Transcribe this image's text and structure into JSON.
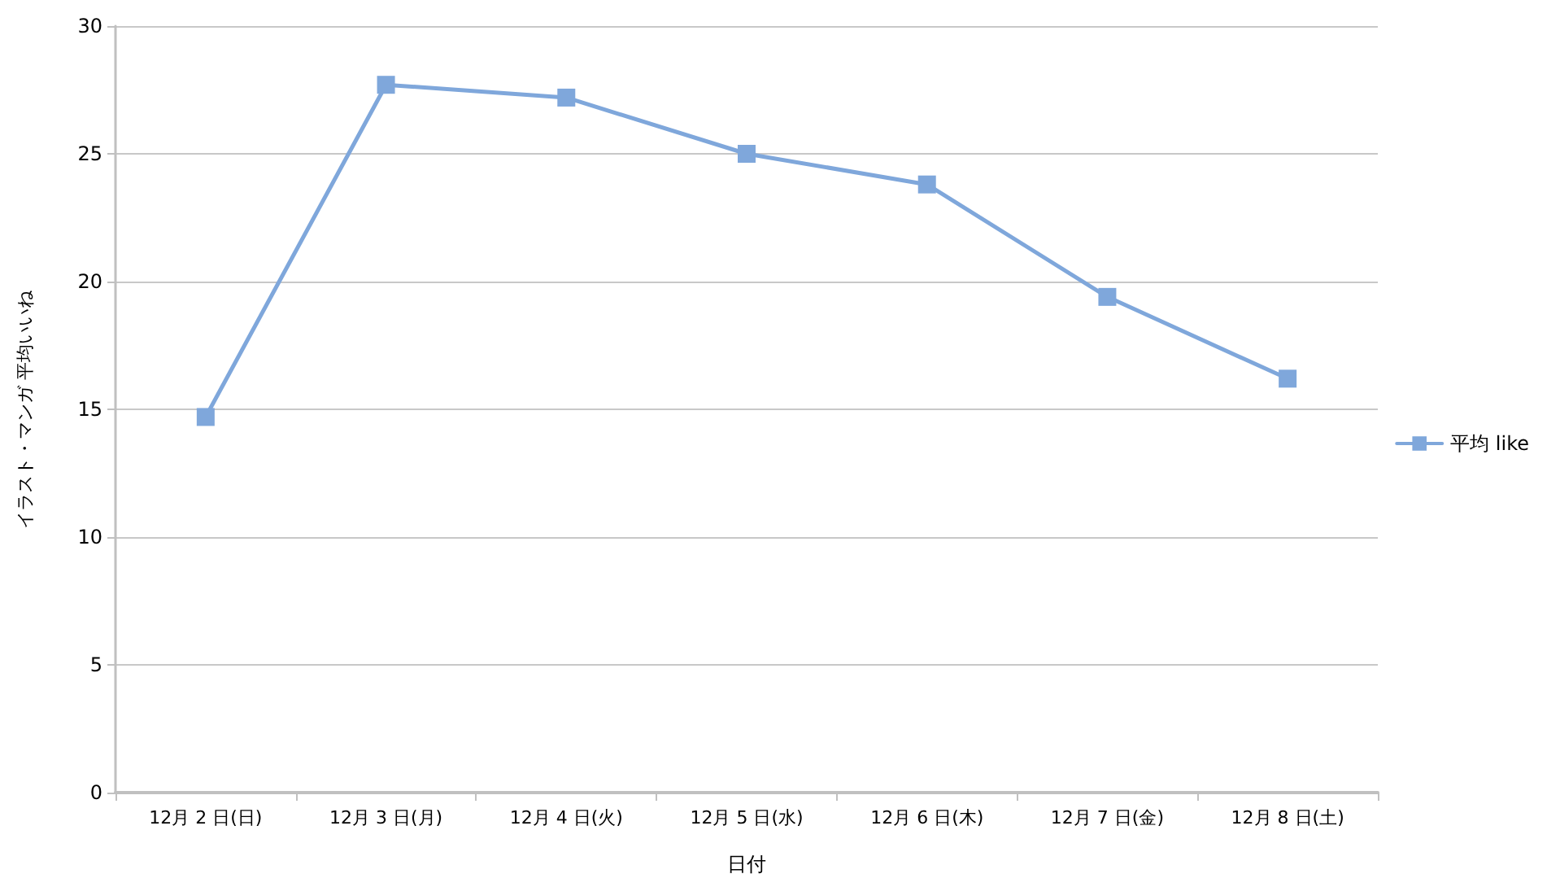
{
  "chart_data": {
    "type": "line",
    "categories": [
      "12月 2 日(日)",
      "12月 3 日(月)",
      "12月 4 日(火)",
      "12月 5 日(水)",
      "12月 6 日(木)",
      "12月 7 日(金)",
      "12月 8 日(土)"
    ],
    "series": [
      {
        "name": "平均 like",
        "color": "#7fa7db",
        "values": [
          14.7,
          27.7,
          27.2,
          25.0,
          23.8,
          19.4,
          16.2
        ]
      }
    ],
    "xlabel": "日付",
    "ylabel": "イラスト・マンガ 平均いいね",
    "ylim": [
      0,
      30
    ],
    "yticks": [
      0,
      5,
      10,
      15,
      20,
      25,
      30
    ],
    "grid": "y",
    "legend": "right",
    "marker": "square",
    "line_style": "solid"
  }
}
